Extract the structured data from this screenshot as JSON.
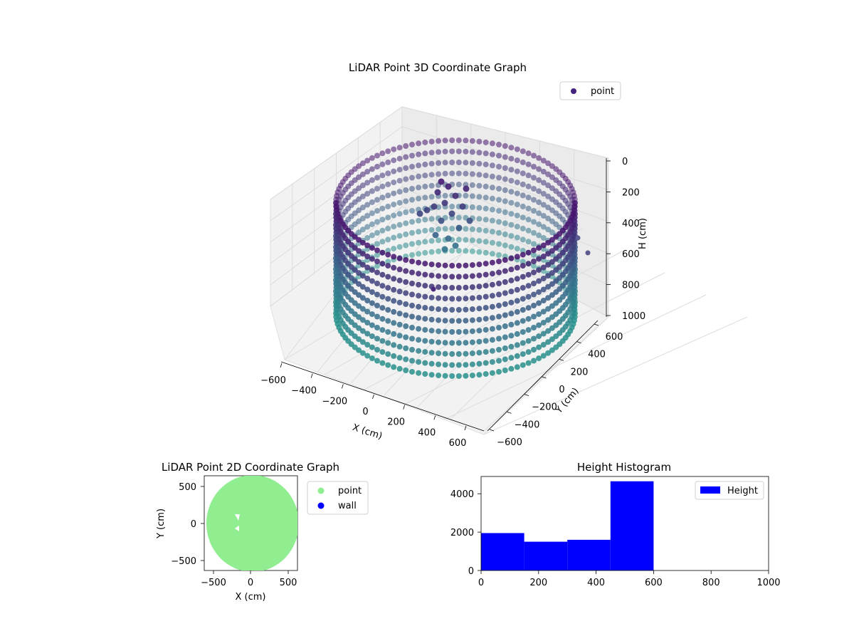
{
  "chart_data": [
    {
      "type": "scatter",
      "title": "LiDAR Point 3D Coordinate Graph",
      "xlabel": "X (cm)",
      "ylabel": "Y (cm)",
      "zlabel": "H (cm)",
      "x_ticks": [
        "−600",
        "−400",
        "−200",
        "0",
        "200",
        "400",
        "600"
      ],
      "y_ticks": [
        "−600",
        "−400",
        "−200",
        "0",
        "200",
        "400",
        "600"
      ],
      "z_ticks": [
        "0",
        "200",
        "400",
        "600",
        "800",
        "1000"
      ],
      "xlim": [
        -600,
        600
      ],
      "ylim": [
        -600,
        600
      ],
      "zlim": [
        0,
        1000
      ],
      "z_inverted": true,
      "series": [
        {
          "name": "point",
          "shape": "cylindrical wall",
          "radius": 600,
          "h_range": [
            0,
            1000
          ],
          "colormap": "viridis",
          "legend_color": "#46237a"
        }
      ],
      "legend_loc": "upper right",
      "grid": true
    },
    {
      "type": "scatter",
      "title": "LiDAR Point 2D Coordinate Graph",
      "xlabel": "X (cm)",
      "ylabel": "Y (cm)",
      "x_ticks": [
        "−500",
        "0",
        "500"
      ],
      "y_ticks": [
        "500",
        "0",
        "−500"
      ],
      "xlim": [
        -620,
        620
      ],
      "ylim": [
        -620,
        620
      ],
      "series": [
        {
          "name": "point",
          "color": "#90ee90",
          "shape": "filled disk",
          "radius": 600
        },
        {
          "name": "wall",
          "color": "#0000ff"
        }
      ],
      "legend_loc": "outside right"
    },
    {
      "type": "bar",
      "title": "Height Histogram",
      "xlabel": "",
      "ylabel": "",
      "series": [
        {
          "name": "Height",
          "color": "#0000ff",
          "bins": [
            [
              0,
              150
            ],
            [
              150,
              300
            ],
            [
              300,
              450
            ],
            [
              450,
              600
            ]
          ],
          "values": [
            1950,
            1500,
            1600,
            4650
          ]
        }
      ],
      "x_ticks": [
        "0",
        "200",
        "400",
        "600",
        "800",
        "1000"
      ],
      "y_ticks": [
        "0",
        "2000",
        "4000"
      ],
      "xlim": [
        0,
        1000
      ],
      "ylim": [
        0,
        4900
      ],
      "legend_loc": "upper right"
    }
  ]
}
